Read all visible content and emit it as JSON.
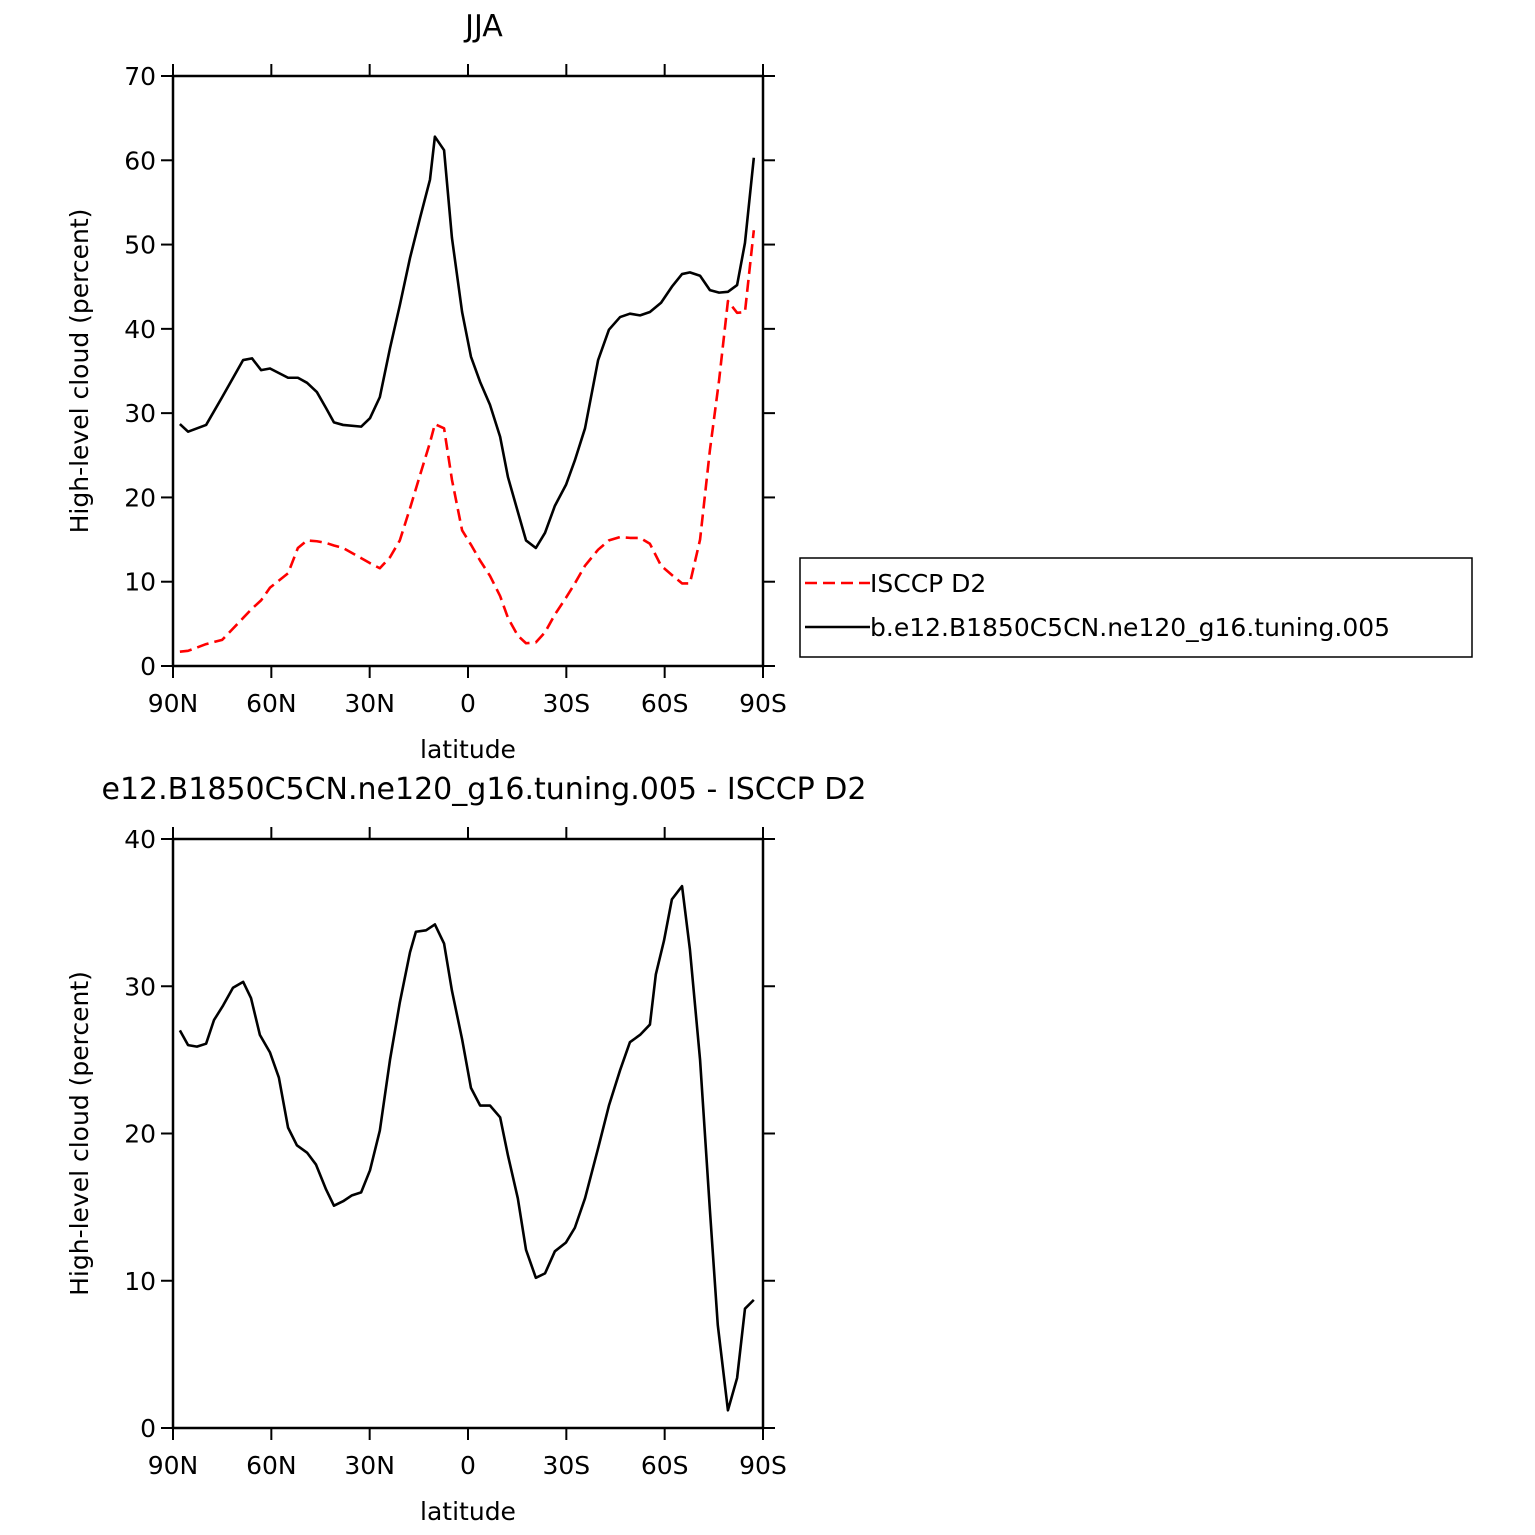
{
  "chart_data": [
    {
      "type": "line",
      "title": "JJA",
      "x_label": "latitude",
      "y_label": "High-level cloud (percent)",
      "xlim": [
        90,
        -90
      ],
      "xticks": [
        {
          "value": 90,
          "label": "90N"
        },
        {
          "value": 60,
          "label": "60N"
        },
        {
          "value": 30,
          "label": "30N"
        },
        0,
        {
          "value": -30,
          "label": "30S"
        },
        {
          "value": -60,
          "label": "60S"
        },
        {
          "value": -90,
          "label": "90S"
        }
      ],
      "ylim": [
        0,
        70
      ],
      "yticks": [
        0,
        10,
        20,
        30,
        40,
        50,
        60,
        70
      ],
      "legend": "right",
      "x": [
        87.9,
        85.4,
        79.9,
        75,
        68.6,
        65.9,
        63.1,
        60.4,
        54.9,
        51.9,
        49.1,
        46.1,
        43.3,
        40.9,
        38.1,
        32.6,
        29.9,
        26.9,
        23.8,
        20.8,
        17.7,
        14.6,
        11.6,
        10.1,
        7.3,
        4.9,
        1.8,
        -0.9,
        -3.7,
        -6.7,
        -9.8,
        -12.2,
        -15.2,
        -17.7,
        -20.7,
        -23.5,
        -26.5,
        -29.9,
        -32.6,
        -35.7,
        -39.7,
        -43,
        -46.4,
        -49.4,
        -52.5,
        -55.5,
        -58.9,
        -62.2,
        -65.3,
        -67.7,
        -70.8,
        -73.8,
        -76.6,
        -79.3,
        -82.1,
        -84.5,
        -87.2
      ],
      "series": [
        {
          "name": "ISCCP D2",
          "color": "#ff0000",
          "style": "dashed",
          "values": [
            1.7,
            1.8,
            2.6,
            3.1,
            5.7,
            6.8,
            7.8,
            9.3,
            11,
            14,
            14.9,
            14.8,
            14.6,
            14.3,
            14,
            12.8,
            12.2,
            11.6,
            12.9,
            14.9,
            18.7,
            22.7,
            26.5,
            28.7,
            28.2,
            22.1,
            16.1,
            14.4,
            12.5,
            10.7,
            8.3,
            5.7,
            3.6,
            2.7,
            2.8,
            4,
            6.1,
            8.1,
            9.8,
            11.9,
            13.8,
            14.9,
            15.3,
            15.2,
            15.2,
            14.5,
            11.9,
            10.8,
            9.8,
            9.8,
            15,
            25.6,
            33.9,
            43.3,
            41.9,
            42,
            51.7
          ]
        },
        {
          "name": "b.e12.B1850C5CN.ne120_g16.tuning.005",
          "color": "#000000",
          "style": "solid",
          "values": [
            28.7,
            27.8,
            28.6,
            31.9,
            36.3,
            36.5,
            35.1,
            35.3,
            34.2,
            34.2,
            33.6,
            32.5,
            30.6,
            28.9,
            28.6,
            28.4,
            29.4,
            31.9,
            37.7,
            42.8,
            48.4,
            53.2,
            57.7,
            62.8,
            61.2,
            50.8,
            42,
            36.7,
            33.7,
            31,
            27.2,
            22.4,
            18.3,
            14.9,
            14,
            15.8,
            19,
            21.5,
            24.4,
            28.2,
            36.3,
            39.9,
            41.4,
            41.8,
            41.6,
            42,
            43.1,
            45,
            46.5,
            46.7,
            46.3,
            44.6,
            44.3,
            44.4,
            45.2,
            50.2,
            60.3
          ]
        }
      ]
    },
    {
      "type": "line",
      "title": "e12.B1850C5CN.ne120_g16.tuning.005 - ISCCP D2",
      "x_label": "latitude",
      "y_label": "High-level cloud (percent)",
      "xlim": [
        90,
        -90
      ],
      "xticks": [
        {
          "value": 90,
          "label": "90N"
        },
        {
          "value": 60,
          "label": "60N"
        },
        {
          "value": 30,
          "label": "30N"
        },
        0,
        {
          "value": -30,
          "label": "30S"
        },
        {
          "value": -60,
          "label": "60S"
        },
        {
          "value": -90,
          "label": "90S"
        }
      ],
      "ylim": [
        0,
        40
      ],
      "yticks": [
        0,
        10,
        20,
        30,
        40
      ],
      "color": "#000000",
      "x": [
        87.9,
        85.4,
        82.7,
        79.9,
        77.5,
        74.7,
        71.7,
        68.6,
        66.2,
        63.5,
        60.4,
        57.7,
        54.9,
        52.2,
        49.1,
        46.4,
        43.3,
        40.9,
        38.1,
        35.4,
        32.6,
        29.9,
        26.9,
        23.8,
        20.8,
        17.7,
        15.9,
        12.8,
        10.1,
        7.3,
        4.9,
        1.8,
        -0.9,
        -3.7,
        -6.7,
        -9.8,
        -12.2,
        -15.2,
        -17.7,
        -20.7,
        -23.5,
        -26.5,
        -29.9,
        -32.6,
        -35.7,
        -39.7,
        -43,
        -46.4,
        -49.4,
        -52.5,
        -55.5,
        -57.3,
        -59.8,
        -62.2,
        -65.3,
        -67.7,
        -70.8,
        -73.8,
        -76.2,
        -79.3,
        -82.1,
        -84.5,
        -87.2
      ],
      "values": [
        27.0,
        26.0,
        25.9,
        26.1,
        27.7,
        28.7,
        29.9,
        30.3,
        29.2,
        26.7,
        25.5,
        23.8,
        20.4,
        19.2,
        18.7,
        17.9,
        16.2,
        15.1,
        15.4,
        15.8,
        16.0,
        17.5,
        20.2,
        25.0,
        28.9,
        32.3,
        33.7,
        33.8,
        34.2,
        32.9,
        29.7,
        26.4,
        23.1,
        21.9,
        21.9,
        21.1,
        18.5,
        15.6,
        12.1,
        10.2,
        10.5,
        12.0,
        12.6,
        13.6,
        15.6,
        19.0,
        21.9,
        24.3,
        26.2,
        26.7,
        27.4,
        30.8,
        33.1,
        35.9,
        36.8,
        32.5,
        25.0,
        14.8,
        7.0,
        1.2,
        3.4,
        8.1,
        8.7
      ]
    }
  ]
}
